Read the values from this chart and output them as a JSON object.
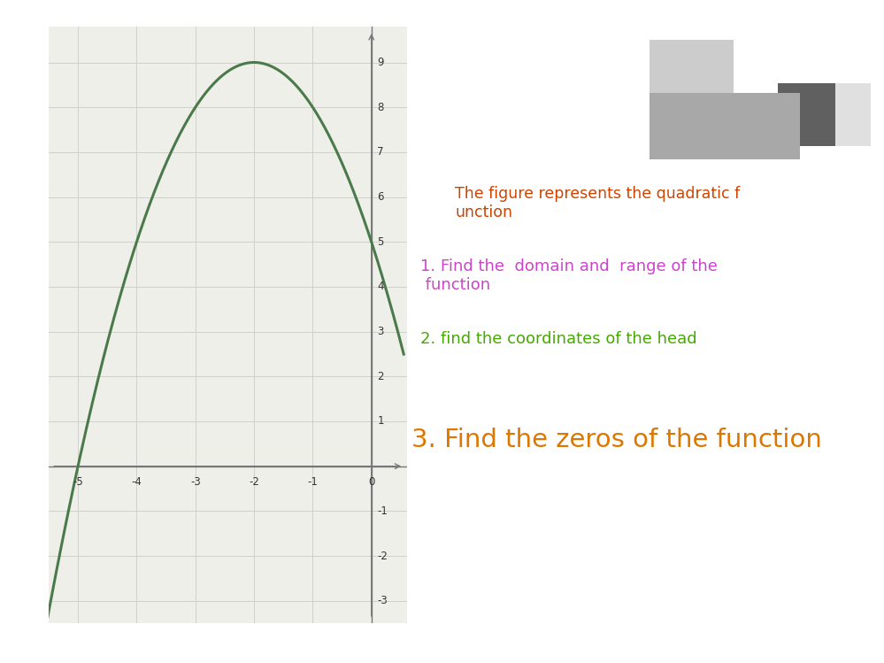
{
  "title_text": "The figure represents the quadratic f\nunction",
  "title_color": "#cc4400",
  "item1_text": "1. Find the  domain and  range of the\n function",
  "item1_color": "#cc44cc",
  "item2_text": "2. find the coordinates of the head",
  "item2_color": "#44aa00",
  "item3_text": "3. Find the zeros of the function",
  "item3_color": "#dd7700",
  "curve_color": "#4a7a4a",
  "grid_color": "#d0d0cc",
  "background_color": "#ffffff",
  "xlim": [
    -5.5,
    0.6
  ],
  "ylim": [
    -3.5,
    9.8
  ],
  "xticks": [
    -5,
    -4,
    -3,
    -2,
    -1,
    0
  ],
  "yticks": [
    -3,
    -2,
    -1,
    1,
    2,
    3,
    4,
    5,
    6,
    7,
    8,
    9
  ],
  "vertex_x": -2,
  "vertex_y": 9,
  "a_coeff": -1,
  "graph_background": "#efefea",
  "rect1_color": "#c0c0c0",
  "rect2_color": "#a8a8a8",
  "rect3_color": "#606060",
  "rect4_color": "#e0e0e0"
}
